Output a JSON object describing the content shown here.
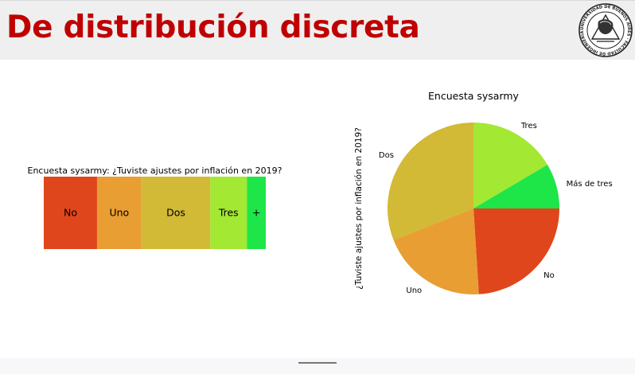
{
  "slide": {
    "title": "De distribución discreta"
  },
  "logo": {
    "name": "university-seal",
    "text": "UNIVERSIDAD DE BUENOS AIRES · FACULTAD DE INGENIERIA"
  },
  "colors": {
    "title": "#c00000",
    "no": "#e0461c",
    "uno": "#e89e32",
    "dos": "#d2b936",
    "tres": "#a3e832",
    "mas": "#1ee548"
  },
  "chart_data": [
    {
      "type": "bar",
      "stacked": true,
      "orientation": "horizontal",
      "title": "Encuesta sysarmy: ¿Tuviste ajustes por inflación en 2019?",
      "categories": [
        "No",
        "Uno",
        "Dos",
        "Tres",
        "+"
      ],
      "values": [
        0.24,
        0.2,
        0.31,
        0.165,
        0.085
      ],
      "colors": [
        "#e0461c",
        "#e89e32",
        "#d2b936",
        "#a3e832",
        "#1ee548"
      ],
      "axes": false
    },
    {
      "type": "pie",
      "title": "Encuesta sysarmy",
      "ylabel": "¿Tuviste ajustes por inflación en 2019?",
      "labels": [
        "No",
        "Uno",
        "Dos",
        "Tres",
        "Más de tres"
      ],
      "values": [
        0.24,
        0.2,
        0.31,
        0.165,
        0.085
      ],
      "colors": [
        "#e0461c",
        "#e89e32",
        "#d2b936",
        "#a3e832",
        "#1ee548"
      ],
      "start_angle_deg": 0,
      "direction": "clockwise"
    }
  ]
}
